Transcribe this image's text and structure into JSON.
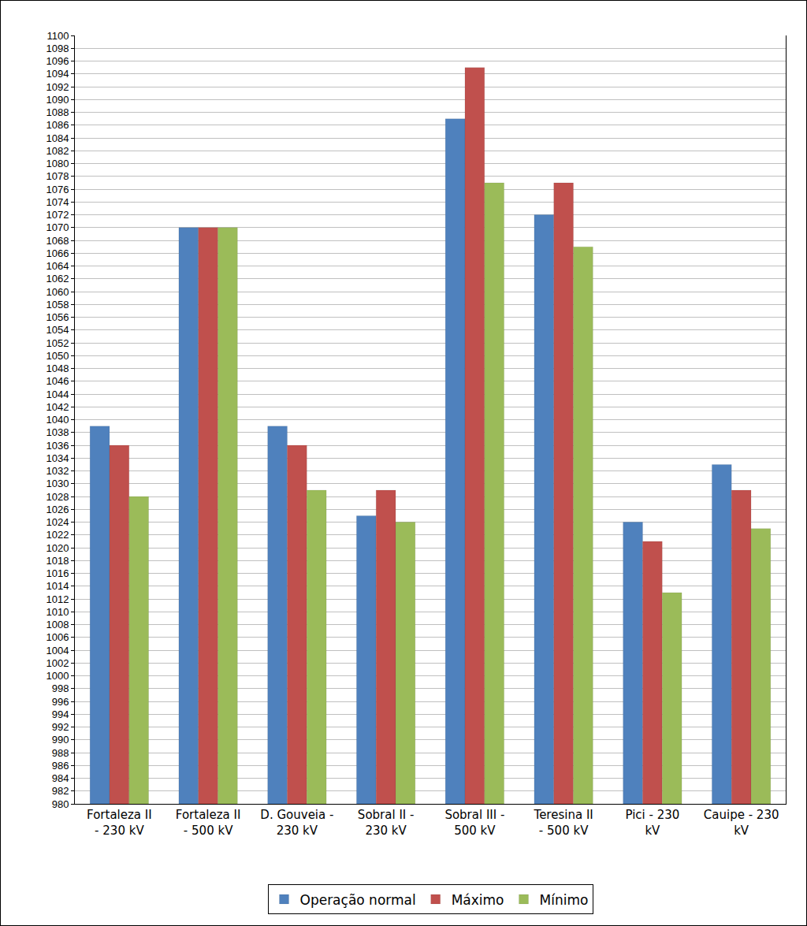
{
  "chart_data": {
    "type": "bar",
    "categories": [
      "Fortaleza II - 230 kV",
      "Fortaleza II - 500 kV",
      "D. Gouveia - 230 kV",
      "Sobral II - 230 kV",
      "Sobral III - 500 kV",
      "Teresina II - 500 kV",
      "Pici - 230 kV",
      "Cauipe - 230 kV"
    ],
    "series": [
      {
        "name": "Operação normal",
        "color": "#4f81bd",
        "values": [
          1039,
          1070,
          1039,
          1025,
          1087,
          1072,
          1024,
          1033
        ]
      },
      {
        "name": "Máximo",
        "color": "#c0504d",
        "values": [
          1036,
          1070,
          1036,
          1029,
          1095,
          1077,
          1021,
          1029
        ]
      },
      {
        "name": "Mínimo",
        "color": "#9bbb59",
        "values": [
          1028,
          1070,
          1029,
          1024,
          1077,
          1067,
          1013,
          1023
        ]
      }
    ],
    "ylim": [
      980,
      1100
    ],
    "yticks": [
      980,
      982,
      984,
      986,
      988,
      990,
      992,
      994,
      996,
      998,
      1000,
      1002,
      1004,
      1006,
      1008,
      1010,
      1012,
      1014,
      1016,
      1018,
      1020,
      1022,
      1024,
      1026,
      1028,
      1030,
      1032,
      1034,
      1036,
      1038,
      1040,
      1042,
      1044,
      1046,
      1048,
      1050,
      1052,
      1054,
      1056,
      1058,
      1060,
      1062,
      1064,
      1066,
      1068,
      1070,
      1072,
      1074,
      1076,
      1078,
      1080,
      1082,
      1084,
      1086,
      1088,
      1090,
      1092,
      1094,
      1096,
      1098,
      1100
    ],
    "grid": true,
    "legend": "bottom"
  }
}
